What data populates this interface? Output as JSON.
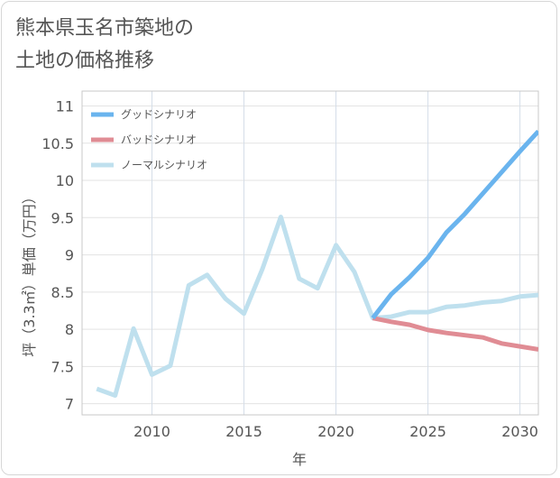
{
  "title_lines": [
    "熊本県玉名市築地の",
    "土地の価格推移"
  ],
  "chart_data": {
    "type": "line",
    "title": "熊本県玉名市築地の土地の価格推移",
    "xlabel": "年",
    "ylabel": "坪（3.3㎡）単価（万円）",
    "xlim": [
      2006.2,
      2031
    ],
    "ylim": [
      6.85,
      11.2
    ],
    "x_ticks": [
      2010,
      2015,
      2020,
      2025,
      2030
    ],
    "y_ticks": [
      7,
      7.5,
      8,
      8.5,
      9,
      9.5,
      10,
      10.5,
      11
    ],
    "y_tick_labels": [
      "7",
      "7.5",
      "8",
      "8.5",
      "9",
      "9.5",
      "10",
      "10.5",
      "11"
    ],
    "grid": true,
    "legend_position": "top-left",
    "series": [
      {
        "name": "グッドシナリオ",
        "color": "#6ab4ee",
        "x": [
          2022,
          2023,
          2024,
          2025,
          2026,
          2027,
          2028,
          2029,
          2030,
          2031
        ],
        "values": [
          8.15,
          8.47,
          8.7,
          8.96,
          9.3,
          9.55,
          9.83,
          10.11,
          10.39,
          10.66
        ]
      },
      {
        "name": "バッドシナリオ",
        "color": "#e08c94",
        "x": [
          2022,
          2023,
          2024,
          2025,
          2026,
          2027,
          2028,
          2029,
          2030,
          2031
        ],
        "values": [
          8.15,
          8.1,
          8.06,
          7.99,
          7.95,
          7.92,
          7.89,
          7.81,
          7.77,
          7.73
        ]
      },
      {
        "name": "ノーマルシナリオ",
        "color": "#bfe0ee",
        "x": [
          2007,
          2008,
          2009,
          2010,
          2011,
          2012,
          2013,
          2014,
          2015,
          2016,
          2017,
          2018,
          2019,
          2020,
          2021,
          2022,
          2023,
          2024,
          2025,
          2026,
          2027,
          2028,
          2029,
          2030,
          2031
        ],
        "values": [
          7.2,
          7.11,
          8.01,
          7.39,
          7.51,
          8.59,
          8.73,
          8.41,
          8.21,
          8.81,
          9.51,
          8.68,
          8.55,
          9.13,
          8.77,
          8.15,
          8.17,
          8.23,
          8.23,
          8.3,
          8.32,
          8.36,
          8.38,
          8.44,
          8.46
        ]
      }
    ]
  }
}
